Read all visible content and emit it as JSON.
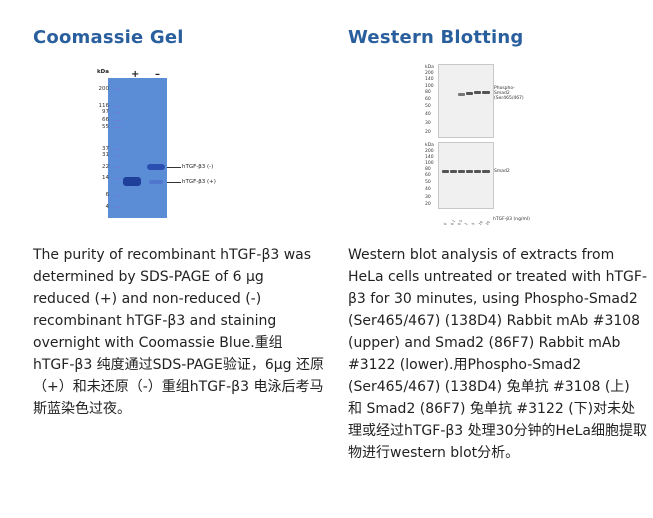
{
  "left": {
    "title": "Coomassie Gel",
    "text": "The purity of recombinant hTGF-β3 was determined by SDS-PAGE of 6 µg reduced (+) and non-reduced (-) recombinant hTGF-β3 and staining overnight with Coomassie Blue.重组 hTGF-β3 纯度通过SDS-PAGE验证，6µg 还原（+）和未还原（-）重组hTGF-β3 电泳后考马斯蓝染色过夜。",
    "figure": {
      "kda_label": "kDa",
      "lane_plus": "+",
      "lane_minus": "–",
      "markers": [
        "200",
        "116",
        "97",
        "66",
        "55",
        "37",
        "31",
        "22",
        "14",
        "6",
        "4"
      ],
      "band_minus_label": "hTGF-β3 (-)",
      "band_plus_label": "hTGF-β3 (+)"
    }
  },
  "right": {
    "title": "Western Blotting",
    "text": "Western blot analysis of extracts from HeLa cells untreated or treated with hTGF-β3 for 30 minutes, using Phospho-Smad2 (Ser465/467) (138D4) Rabbit mAb #3108 (upper) and Smad2 (86F7) Rabbit mAb #3122 (lower).用Phospho-Smad2 (Ser465/467) (138D4) 兔单抗 #3108 (上) 和 Smad2 (86F7) 兔单抗 #3122 (下)对未处理或经过hTGF-β3 处理30分钟的HeLa细胞提取物进行western blot分析。",
    "figure": {
      "upper_label": "Phospho-Smad2 (Ser465/467)",
      "lower_label": "Smad2",
      "axis_label": "hTGF-β3 (ng/ml)",
      "kda_upper": [
        "kDa",
        "200",
        "140",
        "100",
        "80",
        "60",
        "50",
        "40",
        "30",
        "20"
      ],
      "kda_lower": [
        "kDa",
        "200",
        "140",
        "100",
        "80",
        "60",
        "50",
        "40",
        "30",
        "20"
      ],
      "lane_ticks": [
        "0",
        "0.1",
        "0.5",
        "1",
        "5",
        "10",
        "20"
      ]
    }
  }
}
